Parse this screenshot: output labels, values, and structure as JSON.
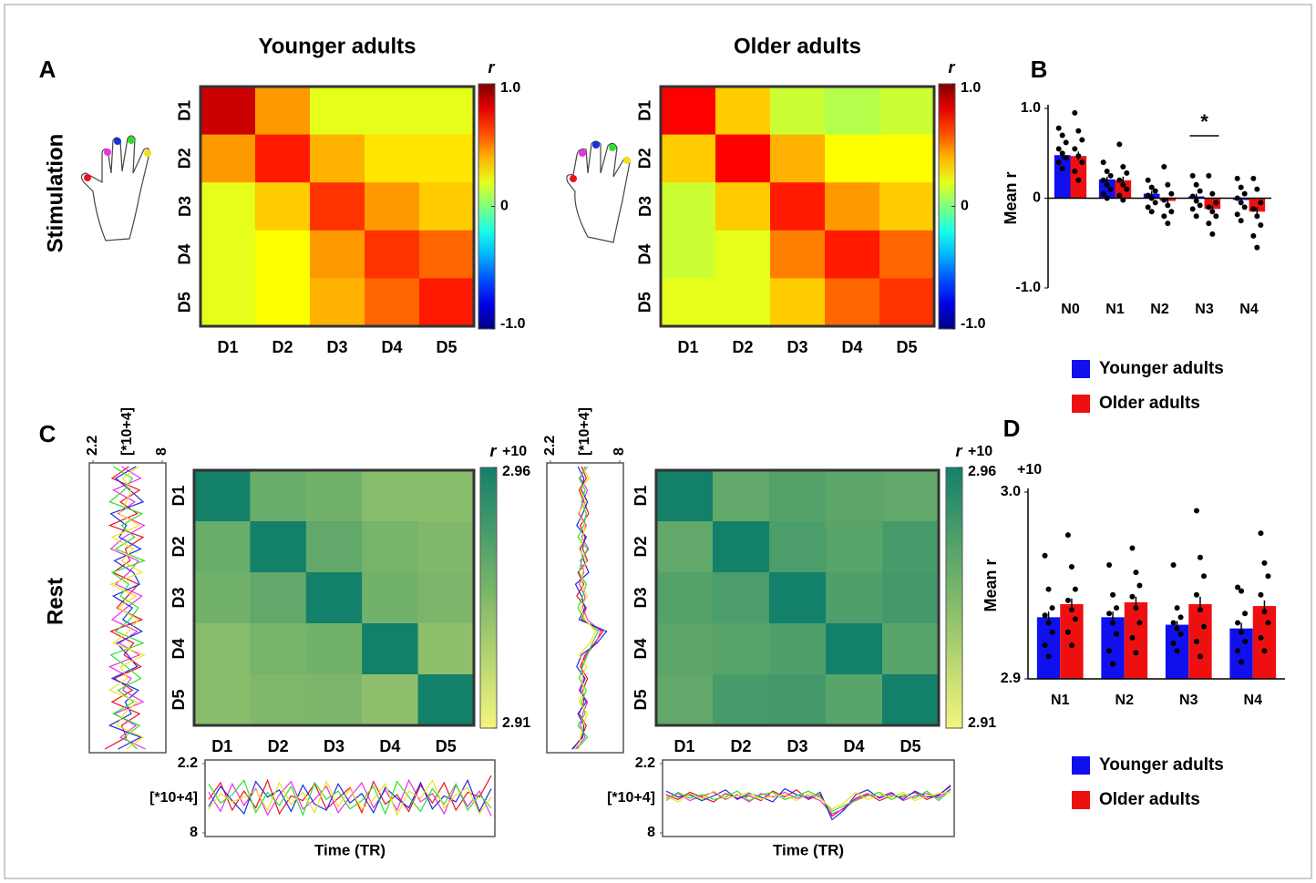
{
  "panel_labels": [
    "A",
    "B",
    "C",
    "D"
  ],
  "row_labels": [
    "Stimulation",
    "Rest"
  ],
  "chart_data": [
    {
      "type": "heatmap",
      "title": "Younger adults",
      "categories": [
        "D1",
        "D2",
        "D3",
        "D4",
        "D5"
      ],
      "category_colors": [
        "#e8141c",
        "#ee2ee8",
        "#1a2ee0",
        "#2ee02e",
        "#f0e020"
      ],
      "values": [
        [
          0.85,
          0.45,
          0.2,
          0.2,
          0.2
        ],
        [
          0.45,
          0.7,
          0.4,
          0.3,
          0.3
        ],
        [
          0.2,
          0.35,
          0.65,
          0.45,
          0.35
        ],
        [
          0.2,
          0.25,
          0.45,
          0.65,
          0.55
        ],
        [
          0.2,
          0.25,
          0.4,
          0.55,
          0.7
        ]
      ],
      "colorbar": {
        "label": "r",
        "colormap": "jet",
        "lim": [
          -1,
          1
        ],
        "ticks": [
          {
            "value": 1,
            "label": "1.0"
          },
          0,
          {
            "value": -1,
            "label": "-1.0"
          }
        ]
      }
    },
    {
      "type": "heatmap",
      "title": "Older adults",
      "categories": [
        "D1",
        "D2",
        "D3",
        "D4",
        "D5"
      ],
      "category_colors": [
        "#e8141c",
        "#ee2ee8",
        "#1a2ee0",
        "#2ee02e",
        "#f0e020"
      ],
      "values": [
        [
          0.75,
          0.35,
          0.15,
          0.1,
          0.15
        ],
        [
          0.35,
          0.75,
          0.4,
          0.25,
          0.25
        ],
        [
          0.15,
          0.35,
          0.7,
          0.45,
          0.35
        ],
        [
          0.15,
          0.2,
          0.5,
          0.7,
          0.55
        ],
        [
          0.2,
          0.2,
          0.35,
          0.55,
          0.65
        ]
      ],
      "colorbar": {
        "label": "r",
        "colormap": "jet",
        "lim": [
          -1,
          1
        ],
        "ticks": [
          {
            "value": 1,
            "label": "1.0"
          },
          0,
          {
            "value": -1,
            "label": "-1.0"
          }
        ]
      }
    },
    {
      "type": "bar",
      "ylabel": "Mean r",
      "annotation": "*",
      "categories": [
        "N0",
        "N1",
        "N2",
        "N3",
        "N4"
      ],
      "ylim": [
        -1,
        1
      ],
      "yticks": [
        {
          "value": -1,
          "label": "-1.0"
        },
        0,
        {
          "value": 1,
          "label": "1.0"
        }
      ],
      "series": [
        {
          "name": "Younger adults",
          "color": "#1010ee",
          "values": [
            0.48,
            0.21,
            0.05,
            0.02,
            -0.02
          ],
          "errors": [
            0.04,
            0.03,
            0.03,
            0.03,
            0.03
          ],
          "points": [
            [
              0.78,
              0.7,
              0.62,
              0.55,
              0.5,
              0.45,
              0.4,
              0.33
            ],
            [
              0.4,
              0.3,
              0.25,
              0.2,
              0.15,
              0.1,
              0.05,
              0.0
            ],
            [
              0.2,
              0.12,
              0.08,
              0.03,
              0,
              -0.05,
              -0.1,
              -0.15
            ],
            [
              0.25,
              0.15,
              0.08,
              0.02,
              -0.03,
              -0.08,
              -0.12,
              -0.2
            ],
            [
              0.22,
              0.12,
              0.05,
              0,
              -0.05,
              -0.1,
              -0.18,
              -0.25
            ]
          ]
        },
        {
          "name": "Older adults",
          "color": "#ee1010",
          "values": [
            0.47,
            0.2,
            -0.03,
            -0.12,
            -0.15
          ],
          "errors": [
            0.05,
            0.04,
            0.04,
            0.04,
            0.05
          ],
          "points": [
            [
              0.95,
              0.75,
              0.65,
              0.55,
              0.47,
              0.4,
              0.3,
              0.2
            ],
            [
              0.6,
              0.35,
              0.28,
              0.2,
              0.15,
              0.1,
              0.03,
              -0.02
            ],
            [
              0.35,
              0.15,
              0.05,
              -0.02,
              -0.08,
              -0.15,
              -0.2,
              -0.28
            ],
            [
              0.25,
              0.05,
              -0.05,
              -0.1,
              -0.15,
              -0.2,
              -0.28,
              -0.4
            ],
            [
              0.22,
              0.1,
              -0.05,
              -0.12,
              -0.2,
              -0.3,
              -0.42,
              -0.55
            ]
          ]
        }
      ]
    },
    {
      "type": "heatmap",
      "categories": [
        "D1",
        "D2",
        "D3",
        "D4",
        "D5"
      ],
      "category_colors": [
        "#e8141c",
        "#ee2ee8",
        "#1a2ee0",
        "#2ee02e",
        "#f0e020"
      ],
      "values": [
        [
          2.96,
          2.94,
          2.938,
          2.933,
          2.933
        ],
        [
          2.94,
          2.96,
          2.942,
          2.937,
          2.935
        ],
        [
          2.938,
          2.942,
          2.96,
          2.938,
          2.936
        ],
        [
          2.933,
          2.937,
          2.938,
          2.96,
          2.932
        ],
        [
          2.933,
          2.935,
          2.936,
          2.932,
          2.96
        ]
      ],
      "colorbar": {
        "label": "r",
        "scale_note": "+10",
        "colormap": "yellow-green",
        "lim": [
          2.91,
          2.96
        ],
        "ticks": [
          2.96,
          2.91
        ]
      }
    },
    {
      "type": "line",
      "xlabel": "Time (TR)",
      "ylabel": "[*10+4]",
      "ylim": [
        8,
        2.2
      ],
      "yticks": [
        2.2,
        8
      ],
      "x": [
        1,
        2,
        3,
        4,
        5,
        6,
        7,
        8,
        9,
        10,
        11,
        12,
        13,
        14,
        15,
        16,
        17,
        18,
        19,
        20,
        21,
        22,
        23,
        24,
        25
      ],
      "series": [
        {
          "color": "#e8141c",
          "values": [
            5.2,
            3.8,
            6.1,
            4.5,
            5.9,
            3.6,
            6.4,
            4.9,
            5.3,
            3.9,
            6.0,
            5.1,
            4.2,
            6.3,
            3.7,
            5.6,
            4.8,
            6.2,
            4.0,
            5.5,
            3.8,
            6.1,
            4.6,
            5.0,
            3.2
          ]
        },
        {
          "color": "#ee2ee8",
          "values": [
            4.6,
            6.2,
            3.9,
            5.7,
            4.3,
            6.5,
            4.8,
            3.7,
            6.0,
            5.2,
            4.1,
            6.3,
            5.0,
            3.8,
            5.9,
            4.4,
            6.1,
            3.6,
            5.4,
            4.7,
            6.4,
            4.0,
            5.8,
            4.5,
            6.6
          ]
        },
        {
          "color": "#1a2ee0",
          "values": [
            5.8,
            4.1,
            5.3,
            6.4,
            3.7,
            5.0,
            4.4,
            6.2,
            4.0,
            5.6,
            6.1,
            3.9,
            5.5,
            4.7,
            6.3,
            4.2,
            5.1,
            5.9,
            3.8,
            6.0,
            4.9,
            5.4,
            3.6,
            6.2,
            4.3
          ]
        },
        {
          "color": "#2ee02e",
          "values": [
            3.9,
            5.5,
            4.8,
            3.6,
            6.3,
            4.6,
            5.7,
            4.1,
            6.5,
            3.8,
            5.2,
            4.5,
            6.0,
            5.3,
            4.1,
            6.4,
            3.7,
            5.0,
            6.2,
            4.3,
            5.6,
            3.9,
            6.1,
            4.8,
            5.9
          ]
        },
        {
          "color": "#f0e020",
          "values": [
            6.0,
            4.7,
            5.4,
            5.0,
            4.4,
            6.1,
            3.8,
            5.6,
            4.6,
            6.3,
            3.7,
            5.8,
            4.3,
            6.0,
            5.2,
            3.9,
            6.5,
            4.5,
            5.1,
            3.6,
            5.9,
            4.8,
            4.2,
            6.4,
            5.0
          ]
        }
      ]
    },
    {
      "type": "heatmap",
      "categories": [
        "D1",
        "D2",
        "D3",
        "D4",
        "D5"
      ],
      "category_colors": [
        "#e8141c",
        "#ee2ee8",
        "#1a2ee0",
        "#2ee02e",
        "#f0e020"
      ],
      "values": [
        [
          2.96,
          2.942,
          2.945,
          2.943,
          2.942
        ],
        [
          2.942,
          2.96,
          2.947,
          2.944,
          2.948
        ],
        [
          2.945,
          2.947,
          2.96,
          2.946,
          2.949
        ],
        [
          2.943,
          2.944,
          2.946,
          2.96,
          2.944
        ],
        [
          2.942,
          2.948,
          2.949,
          2.944,
          2.96
        ]
      ],
      "colorbar": {
        "label": "r",
        "scale_note": "+10",
        "colormap": "yellow-green",
        "lim": [
          2.91,
          2.96
        ],
        "ticks": [
          2.96,
          2.91
        ]
      }
    },
    {
      "type": "line",
      "xlabel": "Time (TR)",
      "ylabel": "[*10+4]",
      "ylim": [
        8,
        2.2
      ],
      "yticks": [
        2.2,
        8
      ],
      "x": [
        1,
        2,
        3,
        4,
        5,
        6,
        7,
        8,
        9,
        10,
        11,
        12,
        13,
        14,
        15,
        16,
        17,
        18,
        19,
        20,
        21,
        22,
        23,
        24,
        25
      ],
      "series": [
        {
          "color": "#e8141c",
          "values": [
            4.8,
            5.2,
            4.6,
            5.0,
            5.4,
            4.7,
            5.1,
            4.9,
            5.3,
            4.5,
            5.0,
            4.4,
            5.2,
            4.8,
            6.6,
            5.9,
            5.1,
            4.7,
            5.3,
            4.9,
            5.0,
            4.6,
            5.2,
            4.8,
            4.1
          ]
        },
        {
          "color": "#ee2ee8",
          "values": [
            5.1,
            4.7,
            5.3,
            4.9,
            4.6,
            5.2,
            4.8,
            5.4,
            4.7,
            5.0,
            4.6,
            5.1,
            4.9,
            5.3,
            6.4,
            6.0,
            5.2,
            4.8,
            5.0,
            4.6,
            5.3,
            4.9,
            4.7,
            5.1,
            4.3
          ]
        },
        {
          "color": "#1a2ee0",
          "values": [
            4.5,
            5.0,
            4.8,
            5.3,
            4.9,
            4.4,
            5.2,
            4.7,
            5.0,
            5.4,
            4.3,
            4.8,
            5.1,
            4.6,
            6.9,
            6.1,
            4.8,
            4.4,
            5.1,
            4.7,
            5.2,
            4.5,
            5.0,
            4.9,
            4.0
          ]
        },
        {
          "color": "#2ee02e",
          "values": [
            5.3,
            4.6,
            5.1,
            4.8,
            5.2,
            5.0,
            4.5,
            5.3,
            4.8,
            4.6,
            5.2,
            4.9,
            4.5,
            5.0,
            6.2,
            5.7,
            5.3,
            4.9,
            4.6,
            5.2,
            4.8,
            5.1,
            4.5,
            5.3,
            4.4
          ]
        },
        {
          "color": "#f0e020",
          "values": [
            4.9,
            5.4,
            4.7,
            5.2,
            4.5,
            5.1,
            4.9,
            4.6,
            5.2,
            4.9,
            4.8,
            5.3,
            4.7,
            5.1,
            6.0,
            5.5,
            4.6,
            5.2,
            4.8,
            5.0,
            4.6,
            5.3,
            4.9,
            4.7,
            4.6
          ]
        }
      ]
    },
    {
      "type": "bar",
      "ylabel": "Mean r",
      "ylim_note": "+10",
      "categories": [
        "N1",
        "N2",
        "N3",
        "N4"
      ],
      "ylim": [
        2.9,
        3.0
      ],
      "yticks": [
        2.9,
        {
          "value": 3.0,
          "label": "3.0"
        }
      ],
      "series": [
        {
          "name": "Younger adults",
          "color": "#1010ee",
          "values": [
            2.933,
            2.933,
            2.929,
            2.927
          ],
          "errors": [
            0.003,
            0.003,
            0.002,
            0.003
          ],
          "points": [
            [
              2.966,
              2.948,
              2.938,
              2.934,
              2.93,
              2.925,
              2.918,
              2.912
            ],
            [
              2.961,
              2.945,
              2.938,
              2.935,
              2.93,
              2.924,
              2.915,
              2.908
            ],
            [
              2.961,
              2.938,
              2.933,
              2.93,
              2.927,
              2.924,
              2.919,
              2.915
            ],
            [
              2.949,
              2.947,
              2.935,
              2.93,
              2.925,
              2.92,
              2.915,
              2.909
            ]
          ]
        },
        {
          "name": "Older adults",
          "color": "#ee1010",
          "values": [
            2.94,
            2.941,
            2.94,
            2.939
          ],
          "errors": [
            0.003,
            0.003,
            0.004,
            0.003
          ],
          "points": [
            [
              2.977,
              2.96,
              2.948,
              2.942,
              2.937,
              2.932,
              2.925,
              2.918
            ],
            [
              2.97,
              2.957,
              2.95,
              2.944,
              2.938,
              2.93,
              2.922,
              2.914
            ],
            [
              2.99,
              2.965,
              2.955,
              2.945,
              2.937,
              2.928,
              2.92,
              2.912
            ],
            [
              2.978,
              2.962,
              2.955,
              2.945,
              2.936,
              2.93,
              2.922,
              2.915
            ]
          ]
        }
      ]
    }
  ]
}
